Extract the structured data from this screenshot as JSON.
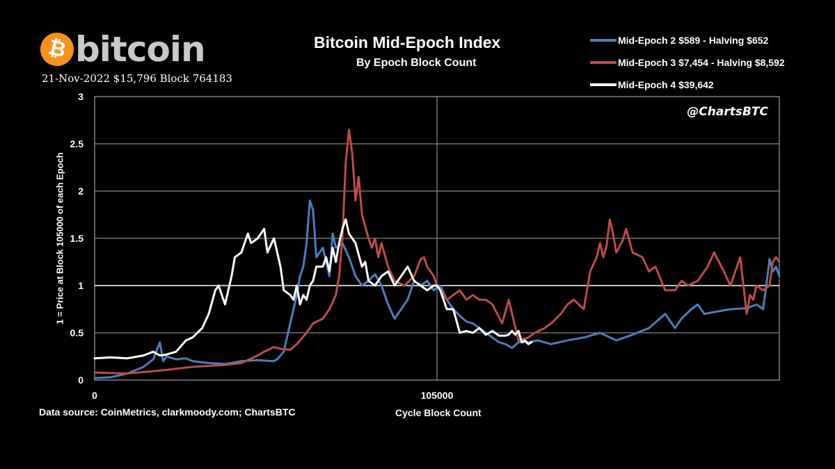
{
  "branding": {
    "logo_symbol": "₿",
    "logo_text": "bitcoin",
    "snapshot": "21-Nov-2022 $15,796 Block 764183",
    "handle": "@ChartsBTC",
    "data_source": "Data source:  CoinMetrics, clarkmoody.com; ChartsBTC"
  },
  "colors": {
    "background": "#000000",
    "epoch2": "#4a7ebb",
    "epoch3": "#be4b48",
    "epoch4": "#ffffff",
    "bitcoin_orange": "#f7931a"
  },
  "chart_data": {
    "type": "line",
    "title": "Bitcoin Mid-Epoch Index",
    "subtitle": "By Epoch Block Count",
    "xlabel": "Cycle Block Count",
    "ylabel": "1 = Price at Block 105000 of each Epoch",
    "xlim": [
      0,
      210000
    ],
    "ylim": [
      0,
      3
    ],
    "x_ticks": [
      0,
      105000
    ],
    "x_tick_labels": [
      "0",
      "105000"
    ],
    "y_ticks": [
      0,
      0.5,
      1,
      1.5,
      2,
      2.5,
      3
    ],
    "y_tick_labels": [
      "0",
      "0.5",
      "1",
      "1.5",
      "2",
      "2.5",
      "3"
    ],
    "reference_line": 1,
    "grid": true,
    "legend_position": "top-right",
    "series": [
      {
        "name": "Mid-Epoch 2 $589 - Halving $652",
        "color_key": "epoch2",
        "x": [
          0,
          5000,
          10000,
          15000,
          18000,
          20000,
          21000,
          22000,
          25000,
          28000,
          30000,
          35000,
          40000,
          45000,
          50000,
          55000,
          56000,
          58000,
          60000,
          62000,
          63000,
          64000,
          65000,
          66000,
          67000,
          68000,
          70000,
          72000,
          73000,
          74000,
          76000,
          78000,
          80000,
          82000,
          84000,
          86000,
          88000,
          90000,
          92000,
          94000,
          96000,
          98000,
          100000,
          102000,
          104000,
          105000,
          106000,
          108000,
          110000,
          112000,
          114000,
          116000,
          118000,
          120000,
          122000,
          124000,
          126000,
          128000,
          130000,
          133000,
          136000,
          140000,
          145000,
          150000,
          155000,
          160000,
          165000,
          170000,
          175000,
          178000,
          180000,
          183000,
          185000,
          187000,
          190000,
          195000,
          200000,
          203000,
          205000,
          206000,
          207000,
          208000,
          209000,
          210000
        ],
        "values": [
          0.02,
          0.03,
          0.07,
          0.14,
          0.22,
          0.4,
          0.2,
          0.25,
          0.22,
          0.23,
          0.2,
          0.18,
          0.17,
          0.2,
          0.21,
          0.2,
          0.22,
          0.3,
          0.6,
          0.9,
          1.1,
          1.2,
          1.45,
          1.9,
          1.8,
          1.3,
          1.4,
          1.1,
          1.55,
          1.4,
          1.45,
          1.3,
          1.1,
          1.0,
          1.05,
          1.12,
          1.0,
          0.8,
          0.65,
          0.75,
          0.85,
          1.05,
          1.0,
          1.05,
          0.95,
          0.98,
          1.0,
          0.85,
          0.75,
          0.68,
          0.62,
          0.6,
          0.55,
          0.5,
          0.45,
          0.4,
          0.38,
          0.34,
          0.4,
          0.4,
          0.42,
          0.38,
          0.42,
          0.45,
          0.5,
          0.42,
          0.48,
          0.55,
          0.7,
          0.55,
          0.65,
          0.75,
          0.8,
          0.7,
          0.72,
          0.75,
          0.76,
          0.8,
          0.75,
          1.0,
          1.28,
          1.15,
          1.2,
          1.1
        ]
      },
      {
        "name": "Mid-Epoch 3 $7,454 - Halving $8,592",
        "color_key": "epoch3",
        "x": [
          0,
          10000,
          20000,
          30000,
          40000,
          45000,
          50000,
          52000,
          55000,
          57000,
          60000,
          62000,
          65000,
          67000,
          70000,
          72000,
          74000,
          75000,
          76000,
          77000,
          78000,
          79000,
          80000,
          81000,
          82000,
          84000,
          85000,
          86000,
          87000,
          88000,
          90000,
          92000,
          95000,
          98000,
          100000,
          101000,
          102000,
          103000,
          104000,
          105000,
          106000,
          108000,
          110000,
          112000,
          114000,
          116000,
          118000,
          120000,
          122000,
          125000,
          127000,
          130000,
          133000,
          135000,
          138000,
          140000,
          143000,
          145000,
          147000,
          150000,
          152000,
          154000,
          155000,
          156000,
          157000,
          158000,
          159000,
          160000,
          162000,
          163000,
          165000,
          168000,
          170000,
          172000,
          175000,
          178000,
          180000,
          182000,
          185000,
          188000,
          190000,
          193000,
          195000,
          198000,
          200000,
          201000,
          202000,
          203000,
          205000,
          207000,
          208000,
          209000,
          210000
        ],
        "values": [
          0.08,
          0.07,
          0.1,
          0.14,
          0.16,
          0.18,
          0.26,
          0.3,
          0.35,
          0.33,
          0.32,
          0.38,
          0.5,
          0.6,
          0.65,
          0.75,
          0.9,
          1.1,
          1.5,
          2.3,
          2.65,
          2.4,
          1.9,
          2.15,
          1.75,
          1.5,
          1.4,
          1.5,
          1.3,
          1.45,
          1.2,
          1.05,
          1.0,
          1.1,
          1.28,
          1.3,
          1.2,
          1.15,
          1.1,
          1.0,
          0.95,
          0.85,
          0.9,
          0.95,
          0.85,
          0.9,
          0.85,
          0.85,
          0.8,
          0.6,
          0.85,
          0.42,
          0.45,
          0.5,
          0.55,
          0.6,
          0.7,
          0.8,
          0.85,
          0.75,
          1.15,
          1.3,
          1.45,
          1.3,
          1.42,
          1.7,
          1.55,
          1.35,
          1.48,
          1.6,
          1.35,
          1.3,
          1.15,
          1.2,
          0.95,
          0.95,
          1.05,
          1.0,
          1.05,
          1.2,
          1.35,
          1.15,
          1.0,
          1.3,
          0.7,
          0.9,
          0.85,
          1.0,
          0.95,
          1.0,
          1.25,
          1.3,
          1.25
        ]
      },
      {
        "name": "Mid-Epoch 4 $39,642",
        "color_key": "epoch4",
        "x": [
          0,
          5000,
          10000,
          15000,
          18000,
          20000,
          22000,
          25000,
          28000,
          30000,
          33000,
          35000,
          37000,
          38000,
          40000,
          42000,
          43000,
          45000,
          47000,
          48000,
          50000,
          52000,
          53000,
          55000,
          57000,
          58000,
          60000,
          61000,
          62000,
          63000,
          64000,
          65000,
          66000,
          67000,
          68000,
          70000,
          71000,
          72000,
          73000,
          74000,
          75000,
          76000,
          77000,
          78000,
          80000,
          82000,
          83000,
          84000,
          86000,
          88000,
          90000,
          92000,
          94000,
          96000,
          98000,
          100000,
          102000,
          104000,
          105000,
          106000,
          108000,
          110000,
          112000,
          114000,
          116000,
          118000,
          120000,
          122000,
          124000,
          126000,
          127000,
          128000,
          129000,
          130000,
          131000,
          132000,
          133000,
          134000
        ],
        "values": [
          0.23,
          0.24,
          0.23,
          0.26,
          0.3,
          0.26,
          0.27,
          0.3,
          0.42,
          0.45,
          0.55,
          0.7,
          0.95,
          1.0,
          0.8,
          1.1,
          1.3,
          1.35,
          1.55,
          1.45,
          1.5,
          1.6,
          1.35,
          1.5,
          1.2,
          0.95,
          0.9,
          0.85,
          1.0,
          0.8,
          0.9,
          0.85,
          1.0,
          1.05,
          1.2,
          1.2,
          1.3,
          1.15,
          1.4,
          1.25,
          1.45,
          1.6,
          1.7,
          1.55,
          1.45,
          1.2,
          1.25,
          1.05,
          1.0,
          1.1,
          1.15,
          1.0,
          1.1,
          1.2,
          1.05,
          1.0,
          0.95,
          1.0,
          1.0,
          0.95,
          0.75,
          0.75,
          0.5,
          0.52,
          0.5,
          0.55,
          0.48,
          0.52,
          0.47,
          0.47,
          0.48,
          0.52,
          0.48,
          0.52,
          0.4,
          0.42,
          0.38,
          0.4
        ]
      }
    ]
  }
}
